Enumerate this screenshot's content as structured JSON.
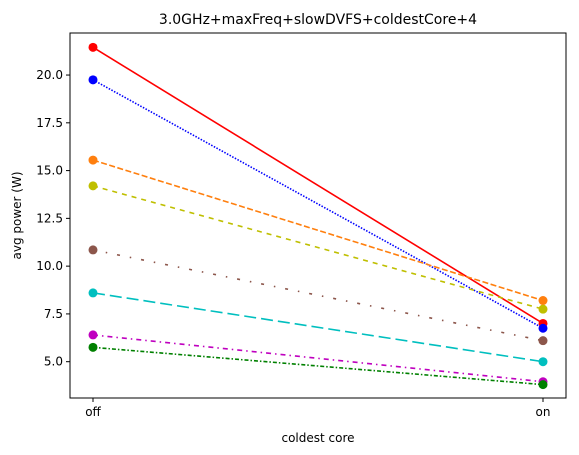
{
  "chart_data": {
    "type": "line",
    "title": "3.0GHz+maxFreq+slowDVFS+coldestCore+4",
    "xlabel": "coldest core",
    "ylabel": "avg power (W)",
    "categories": [
      "off",
      "on"
    ],
    "ylim": [
      3.1,
      22.2
    ],
    "yticks": [
      "5.0",
      "7.5",
      "10.0",
      "12.5",
      "15.0",
      "17.5",
      "20.0"
    ],
    "grid": false,
    "series": [
      {
        "values": [
          21.45,
          7.0
        ],
        "color": "#ff0000",
        "dash": "solid"
      },
      {
        "values": [
          19.75,
          6.75
        ],
        "color": "#0000ff",
        "dash": "dotted"
      },
      {
        "values": [
          15.55,
          8.2
        ],
        "color": "#ff7f0e",
        "dash": "dashed"
      },
      {
        "values": [
          14.2,
          7.75
        ],
        "color": "#bfbf00",
        "dash": "dashed-short"
      },
      {
        "values": [
          10.85,
          6.1
        ],
        "color": "#8c564b",
        "dash": "loose-dashdot"
      },
      {
        "values": [
          8.6,
          5.0
        ],
        "color": "#00bfbf",
        "dash": "long-dash"
      },
      {
        "values": [
          6.4,
          3.95
        ],
        "color": "#bf00bf",
        "dash": "dashdot"
      },
      {
        "values": [
          5.75,
          3.8
        ],
        "color": "#008000",
        "dash": "dashdot-tight"
      }
    ]
  }
}
